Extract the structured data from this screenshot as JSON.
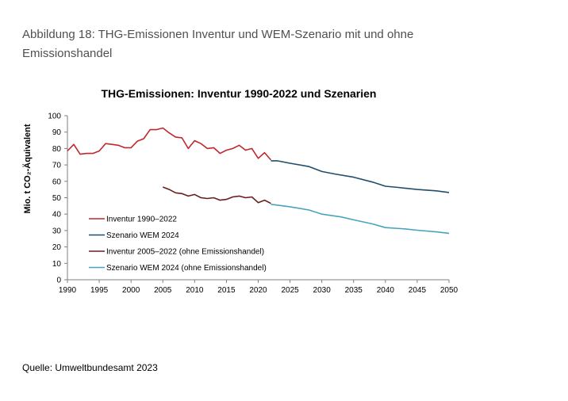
{
  "caption": "Abbildung 18: THG-Emissionen Inventur und WEM-Szenario mit und ohne Emissionshandel",
  "source": "Quelle: Umweltbundesamt 2023",
  "chart_data": {
    "type": "line",
    "title": "THG-Emissionen: Inventur 1990-2022 und Szenarien",
    "xlabel": "",
    "ylabel": "Mio. t CO₂-Äquivalent",
    "xlim": [
      1990,
      2050
    ],
    "ylim": [
      0,
      100
    ],
    "xticks": [
      1990,
      1995,
      2000,
      2005,
      2010,
      2015,
      2020,
      2025,
      2030,
      2035,
      2040,
      2045,
      2050
    ],
    "yticks": [
      0,
      10,
      20,
      30,
      40,
      50,
      60,
      70,
      80,
      90,
      100
    ],
    "grid": false,
    "legend_position": "bottom-left",
    "series": [
      {
        "name": "Inventur 1990–2022",
        "color": "#c0282d",
        "x": [
          1990,
          1991,
          1992,
          1993,
          1994,
          1995,
          1996,
          1997,
          1998,
          1999,
          2000,
          2001,
          2002,
          2003,
          2004,
          2005,
          2006,
          2007,
          2008,
          2009,
          2010,
          2011,
          2012,
          2013,
          2014,
          2015,
          2016,
          2017,
          2018,
          2019,
          2020,
          2021,
          2022
        ],
        "y": [
          78.5,
          82.5,
          76.5,
          77,
          77,
          78.5,
          83,
          82.5,
          82,
          80.5,
          80.5,
          84.5,
          86,
          91.5,
          91.5,
          92.5,
          89.5,
          87,
          86.5,
          80,
          84.8,
          83,
          80,
          80.5,
          77,
          79,
          80,
          82,
          79,
          80,
          74,
          77.5,
          73
        ]
      },
      {
        "name": "Szenario WEM 2024",
        "color": "#1f4e6b",
        "x": [
          2022,
          2023,
          2025,
          2028,
          2030,
          2032,
          2035,
          2038,
          2040,
          2042,
          2045,
          2048,
          2050
        ],
        "y": [
          72.5,
          72.5,
          71,
          69,
          66,
          64.5,
          62.5,
          59.5,
          57,
          56.3,
          55,
          54.2,
          53.2
        ]
      },
      {
        "name": "Inventur 2005–2022 (ohne Emissionshandel)",
        "color": "#6b1d1d",
        "x": [
          2005,
          2006,
          2007,
          2008,
          2009,
          2010,
          2011,
          2012,
          2013,
          2014,
          2015,
          2016,
          2017,
          2018,
          2019,
          2020,
          2021,
          2022
        ],
        "y": [
          56.5,
          55,
          53,
          52.5,
          51,
          52,
          50,
          49.5,
          50,
          48.5,
          49,
          50.5,
          51,
          50,
          50.5,
          47,
          48.5,
          46.5
        ]
      },
      {
        "name": "Szenario WEM 2024 (ohne Emissionshandel)",
        "color": "#4aa3bd",
        "x": [
          2022,
          2025,
          2028,
          2030,
          2033,
          2035,
          2038,
          2040,
          2043,
          2045,
          2048,
          2050
        ],
        "y": [
          46,
          44.5,
          42.5,
          40,
          38.3,
          36.5,
          34,
          31.8,
          31,
          30.2,
          29.2,
          28.3
        ]
      }
    ]
  }
}
